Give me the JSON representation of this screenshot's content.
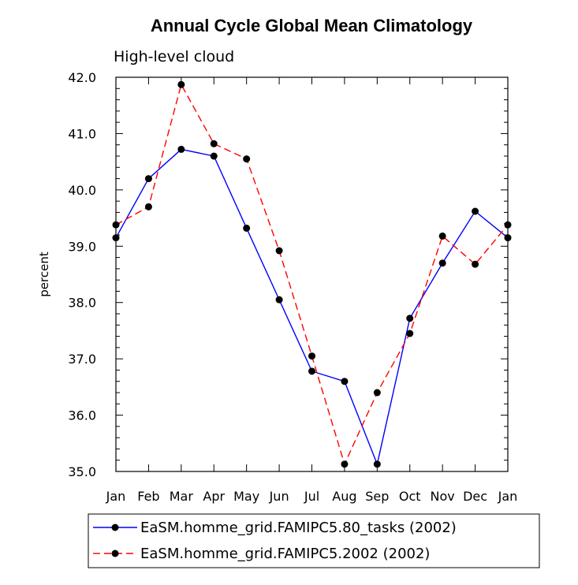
{
  "chart_data": {
    "type": "line",
    "title": "Annual Cycle Global Mean Climatology",
    "subtitle": "High-level cloud",
    "xlabel": "",
    "ylabel": "percent",
    "categories": [
      "Jan",
      "Feb",
      "Mar",
      "Apr",
      "May",
      "Jun",
      "Jul",
      "Aug",
      "Sep",
      "Oct",
      "Nov",
      "Dec",
      "Jan"
    ],
    "ylim": [
      35.0,
      42.0
    ],
    "yticks": [
      "35.0",
      "36.0",
      "37.0",
      "38.0",
      "39.0",
      "40.0",
      "41.0",
      "42.0"
    ],
    "grid": false,
    "legend_position": "bottom",
    "series": [
      {
        "name": "EaSM.homme_grid.FAMIPC5.80_tasks (2002)",
        "color": "#0000ff",
        "dash": "solid",
        "values": [
          39.15,
          40.2,
          40.72,
          40.6,
          39.32,
          38.05,
          36.78,
          36.6,
          35.13,
          37.72,
          38.7,
          39.62,
          39.15
        ]
      },
      {
        "name": "EaSM.homme_grid.FAMIPC5.2002 (2002)",
        "color": "#ff0000",
        "dash": "dashed",
        "values": [
          39.38,
          39.7,
          41.87,
          40.82,
          40.55,
          38.92,
          37.05,
          35.13,
          36.4,
          37.45,
          39.18,
          38.68,
          39.38
        ]
      }
    ]
  }
}
